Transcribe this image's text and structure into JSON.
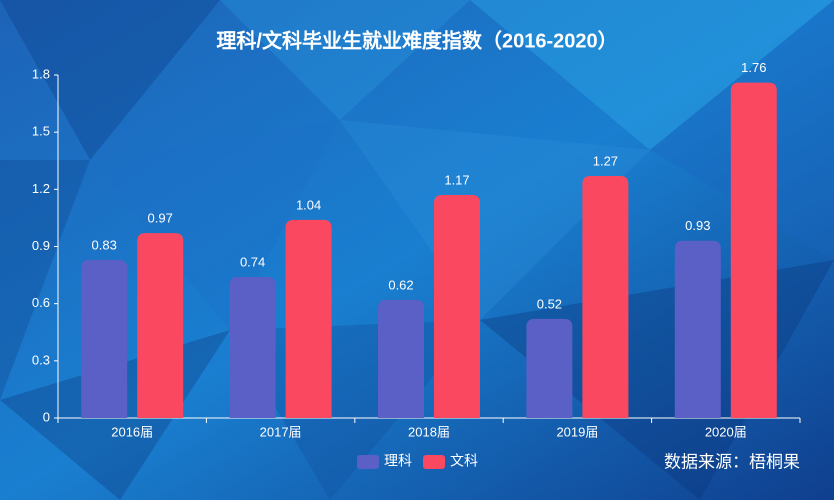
{
  "chart_data": {
    "type": "bar",
    "title": "理科/文科毕业生就业难度指数（2016-2020）",
    "categories": [
      "2016届",
      "2017届",
      "2018届",
      "2019届",
      "2020届"
    ],
    "series": [
      {
        "name": "理科",
        "color": "#5a60c6",
        "values": [
          0.83,
          0.74,
          0.62,
          0.52,
          0.93
        ]
      },
      {
        "name": "文科",
        "color": "#fa4860",
        "values": [
          0.97,
          1.04,
          1.17,
          1.27,
          1.76
        ]
      }
    ],
    "ylim": [
      0,
      1.8
    ],
    "yticks": [
      0,
      0.3,
      0.6,
      0.9,
      1.2,
      1.5,
      1.8
    ],
    "grid": false,
    "legend": "bottom",
    "source": "数据来源：梧桐果"
  }
}
